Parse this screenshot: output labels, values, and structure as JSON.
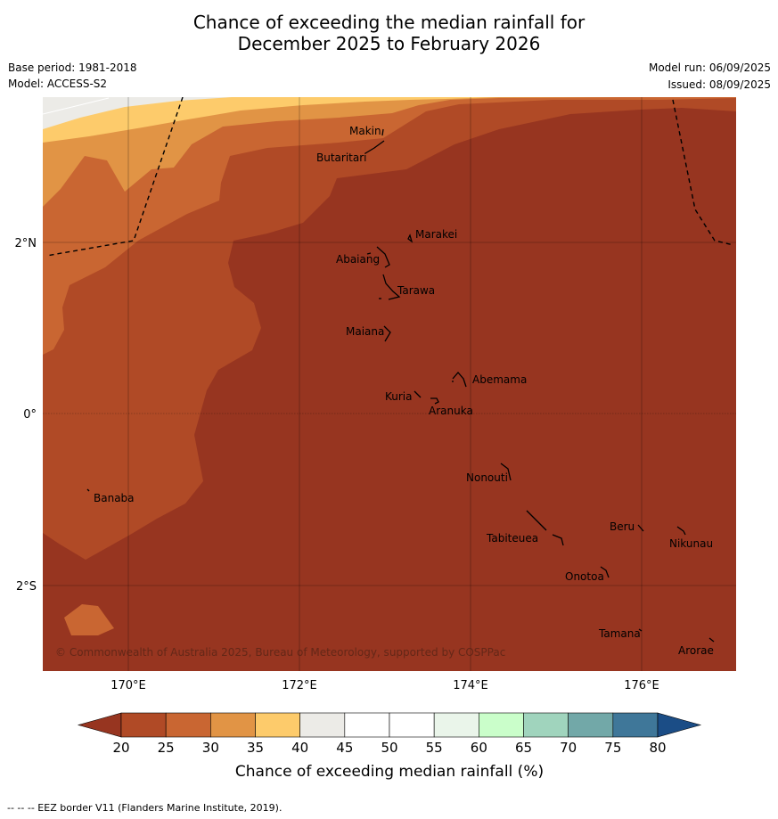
{
  "title": {
    "line1": "Chance of exceeding the median rainfall for",
    "line2": "December 2025 to February 2026"
  },
  "meta": {
    "base_period": "Base period: 1981-2018",
    "model": "Model: ACCESS-S2",
    "model_run": "Model run: 06/09/2025",
    "issued": "Issued: 08/09/2025"
  },
  "map": {
    "lat_labels": [
      "2°N",
      "0°",
      "2°S"
    ],
    "lon_labels": [
      "170°E",
      "172°E",
      "174°E",
      "176°E"
    ],
    "places": [
      {
        "name": "Makin"
      },
      {
        "name": "Butaritari"
      },
      {
        "name": "Marakei"
      },
      {
        "name": "Abaiang"
      },
      {
        "name": "Tarawa"
      },
      {
        "name": "Maiana"
      },
      {
        "name": "Abemama"
      },
      {
        "name": "Kuria"
      },
      {
        "name": "Aranuka"
      },
      {
        "name": "Nonouti"
      },
      {
        "name": "Banaba"
      },
      {
        "name": "Beru"
      },
      {
        "name": "Tabiteuea"
      },
      {
        "name": "Nikunau"
      },
      {
        "name": "Onotoa"
      },
      {
        "name": "Tamana"
      },
      {
        "name": "Arorae"
      }
    ],
    "copyright": "© Commonwealth of Australia 2025, Bureau of Meteorology, supported by COSPPac",
    "colors": {
      "c20": "#973520",
      "c25": "#b04a26",
      "c30": "#c96632",
      "c35": "#e19445",
      "c40": "#fdcb6b",
      "c45": "#ecebe7"
    }
  },
  "colorbar": {
    "ticks": [
      "20",
      "25",
      "30",
      "35",
      "40",
      "45",
      "50",
      "55",
      "60",
      "65",
      "70",
      "75",
      "80"
    ],
    "colors": [
      "#b04a26",
      "#c96632",
      "#e19445",
      "#fdcb6b",
      "#ecebe7",
      "#ffffff",
      "#ffffff",
      "#eaf5ea",
      "#cafeca",
      "#a0d4bd",
      "#72a8a8",
      "#3f7799"
    ],
    "under_color": "#973520",
    "over_color": "#1b4d86",
    "label": "Chance of exceeding median rainfall (%)"
  },
  "footer": "--  --  -- EEZ border V11 (Flanders Marine Institute, 2019)."
}
